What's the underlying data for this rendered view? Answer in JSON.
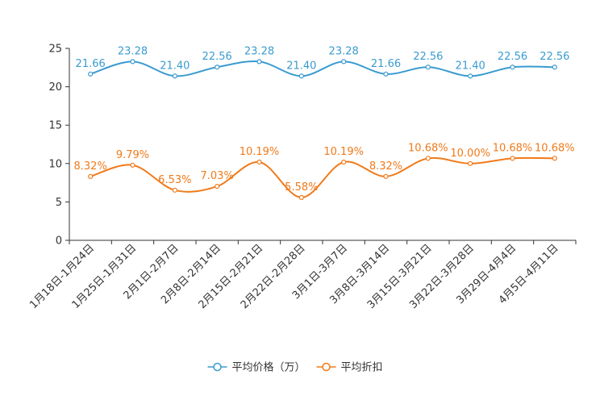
{
  "chart_data": {
    "type": "line",
    "title": "",
    "xlabel": "",
    "ylabel": "",
    "ylim": [
      0,
      25
    ],
    "yticks": [
      0,
      5,
      10,
      15,
      20,
      25
    ],
    "grid": false,
    "legend_position": "bottom-center",
    "categories": [
      "1月18日-1月24日",
      "1月25日-1月31日",
      "2月1日-2月7日",
      "2月8日-2月14日",
      "2月15日-2月21日",
      "2月22日-2月28日",
      "3月1日-3月7日",
      "3月8日-3月14日",
      "3月15日-3月21日",
      "3月22日-3月28日",
      "3月29日-4月4日",
      "4月5日-4月11日"
    ],
    "series": [
      {
        "name": "平均价格（万）",
        "color": "#3a9bd0",
        "values": [
          21.66,
          23.28,
          21.4,
          22.56,
          23.28,
          21.4,
          23.28,
          21.66,
          22.56,
          21.4,
          22.56,
          22.56
        ],
        "labels": [
          "21.66",
          "23.28",
          "21.40",
          "22.56",
          "23.28",
          "21.40",
          "23.28",
          "21.66",
          "22.56",
          "21.40",
          "22.56",
          "22.56"
        ]
      },
      {
        "name": "平均折扣",
        "color": "#f07a1a",
        "values": [
          8.32,
          9.79,
          6.53,
          7.03,
          10.19,
          5.58,
          10.19,
          8.32,
          10.68,
          10.0,
          10.68,
          10.68
        ],
        "labels": [
          "8.32%",
          "9.79%",
          "6.53%",
          "7.03%",
          "10.19%",
          "5.58%",
          "10.19%",
          "8.32%",
          "10.68%",
          "10.00%",
          "10.68%",
          "10.68%"
        ]
      }
    ]
  }
}
